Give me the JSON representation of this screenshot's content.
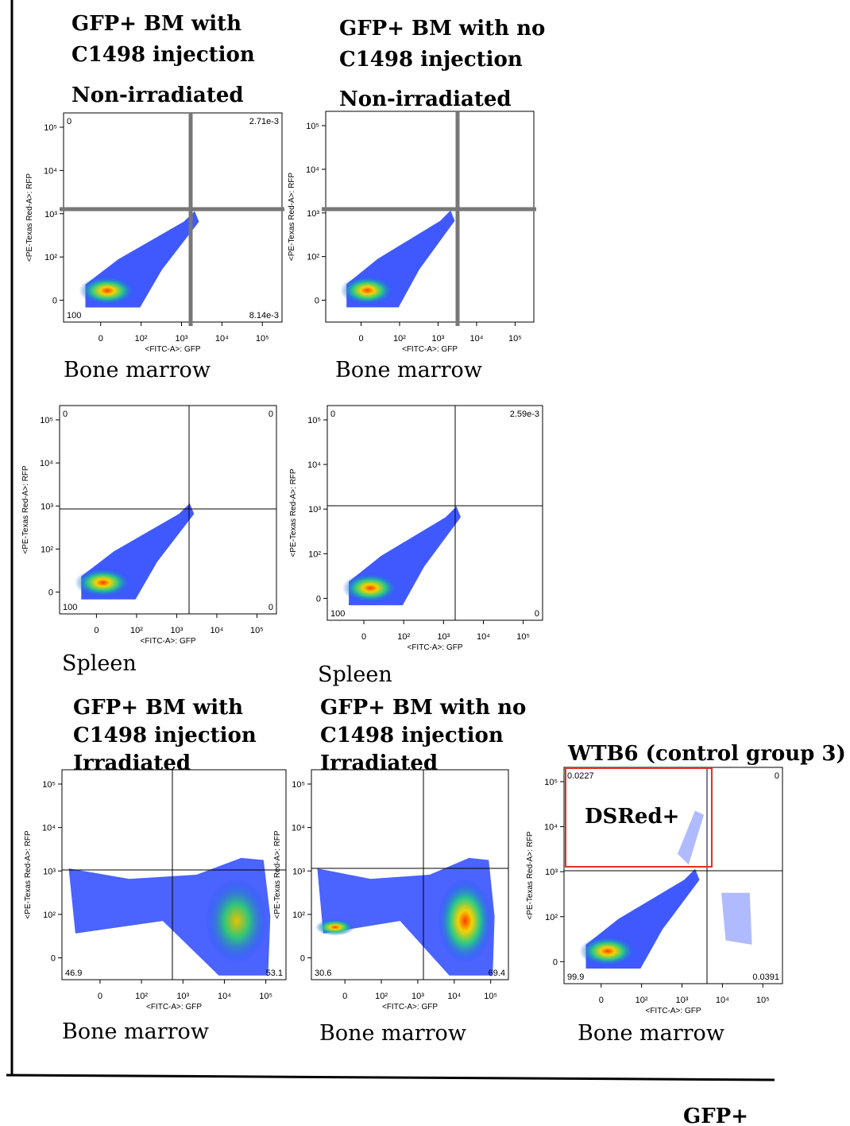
{
  "panels": [
    {
      "title": [
        "GFP+ BM with",
        "C1498 injection",
        "Non-irradiated"
      ],
      "quadrants": {
        "top_left": "0",
        "top_right": "2.71e-3",
        "bottom_left": "100",
        "bottom_right": "8.14e-3"
      },
      "y_axis_label": "<PE-Texas Red-A>: RFP",
      "x_axis_label": "<FITC-A>: GFP",
      "y_ticks": [
        "10⁵",
        "10⁴",
        "10³",
        "10²",
        "0"
      ],
      "x_ticks": [
        "0",
        "10²",
        "10³",
        "10⁴",
        "10⁵"
      ],
      "caption": "Bone marrow"
    },
    {
      "title": [
        "GFP+ BM with no",
        "C1498 injection",
        "Non-irradiated"
      ],
      "y_axis_label": "<PE-Texas Red-A>: RFP",
      "x_axis_label": "<FITC-A>: GFP",
      "y_ticks": [
        "10⁵",
        "10⁴",
        "10³",
        "10²",
        "0"
      ],
      "x_ticks": [
        "0",
        "10²",
        "10³",
        "10⁴",
        "10⁵"
      ],
      "caption": "Bone marrow"
    },
    {
      "quadrants": {
        "top_left": "0",
        "top_right": "0",
        "bottom_left": "100",
        "bottom_right": "0"
      },
      "y_axis_label": "<PE-Texas Red-A>: RFP",
      "x_axis_label": "<FITC-A>: GFP",
      "y_ticks": [
        "10⁵",
        "10⁴",
        "10³",
        "10²",
        "0"
      ],
      "x_ticks": [
        "0",
        "10²",
        "10³",
        "10⁴",
        "10⁵"
      ],
      "caption": "Spleen"
    },
    {
      "quadrants": {
        "top_left": "0",
        "top_right": "2.59e-3",
        "bottom_left": "100",
        "bottom_right": "0"
      },
      "y_axis_label": "<PE-Texas Red-A>: RFP",
      "x_axis_label": "<FITC-A>: GFP",
      "y_ticks": [
        "10⁵",
        "10⁴",
        "10³",
        "10²",
        "0"
      ],
      "x_ticks": [
        "0",
        "10²",
        "10³",
        "10⁴",
        "10⁵"
      ],
      "caption": "Spleen"
    },
    {
      "title": [
        "GFP+ BM with",
        "C1498 injection",
        "Irradiated"
      ],
      "quadrants": {
        "bottom_left": "46.9",
        "bottom_right": "53.1"
      },
      "y_axis_label": "<PE-Texas Red-A>: RFP",
      "x_axis_label": "<FITC-A>: GFP",
      "y_ticks": [
        "10⁵",
        "10⁴",
        "10³",
        "10²",
        "0"
      ],
      "x_ticks": [
        "0",
        "10²",
        "10³",
        "10⁴",
        "10⁵"
      ],
      "caption": "Bone marrow"
    },
    {
      "title": [
        "GFP+ BM with no",
        "C1498 injection",
        "Irradiated"
      ],
      "quadrants": {
        "bottom_left": "30.6",
        "bottom_right": "69.4"
      },
      "y_axis_label": "<PE-Texas Red-A>: RFP",
      "x_axis_label": "<FITC-A>: GFP",
      "y_ticks": [
        "10⁵",
        "10⁴",
        "10³",
        "10²",
        "0"
      ],
      "x_ticks": [
        "0",
        "10²",
        "10³",
        "10⁴",
        "10⁵"
      ],
      "caption": "Bone marrow"
    },
    {
      "title": [
        "WTB6 (control group 3)"
      ],
      "quadrants": {
        "top_left": "0.0227",
        "top_right": "0",
        "bottom_left": "99.9",
        "bottom_right": "0.0391"
      },
      "gate_label": "DSRed+",
      "y_axis_label": "<PE-Texas Red-A>: RFP",
      "x_axis_label": "<FITC-A>: GFP",
      "y_ticks": [
        "10⁵",
        "10⁴",
        "10³",
        "10²",
        "0"
      ],
      "x_ticks": [
        "0",
        "10²",
        "10³",
        "10⁴",
        "10⁵"
      ],
      "caption": "Bone marrow"
    }
  ],
  "footer": "GFP+"
}
